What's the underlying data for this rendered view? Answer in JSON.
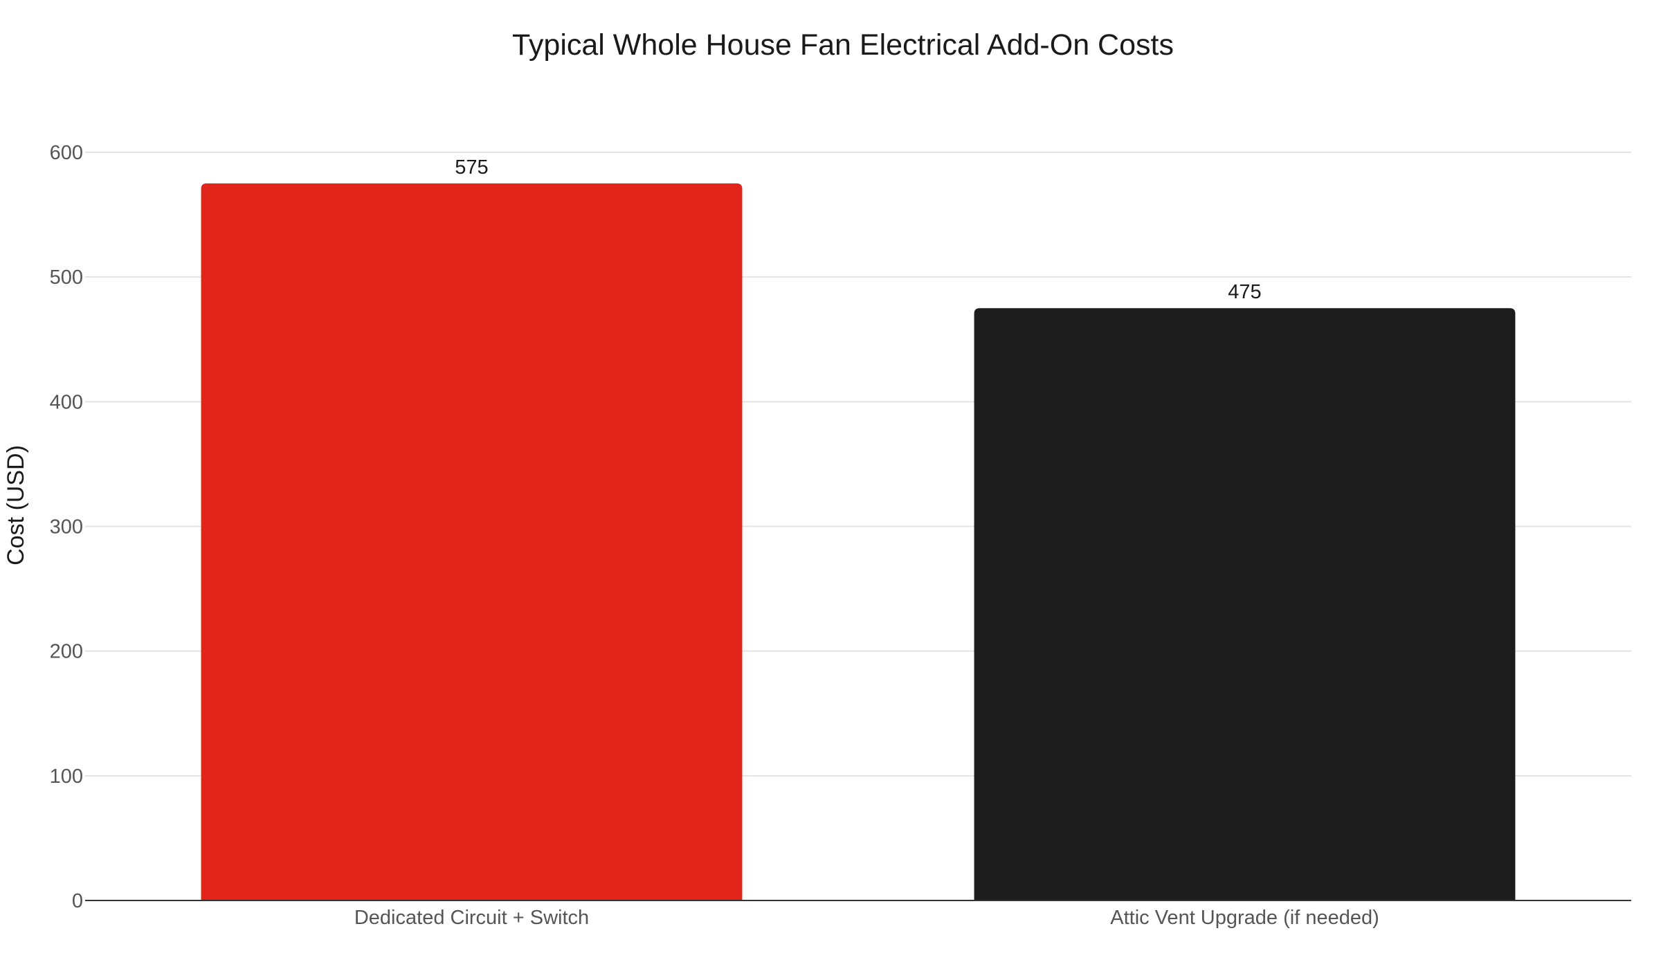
{
  "chart_data": {
    "type": "bar",
    "title": "Typical Whole House Fan Electrical Add-On Costs",
    "xlabel": "",
    "ylabel": "Cost (USD)",
    "categories": [
      "Dedicated Circuit + Switch",
      "Attic Vent Upgrade (if needed)"
    ],
    "values": [
      575,
      475
    ],
    "data_labels": [
      "575",
      "475"
    ],
    "bar_colors": [
      "#e1251b",
      "#1c1c1c"
    ],
    "ylim": [
      0,
      600
    ],
    "yticks": [
      0,
      100,
      200,
      300,
      400,
      500,
      600
    ],
    "ytick_labels": [
      "0",
      "100",
      "200",
      "300",
      "400",
      "500",
      "600"
    ],
    "grid": true,
    "legend": "none"
  }
}
